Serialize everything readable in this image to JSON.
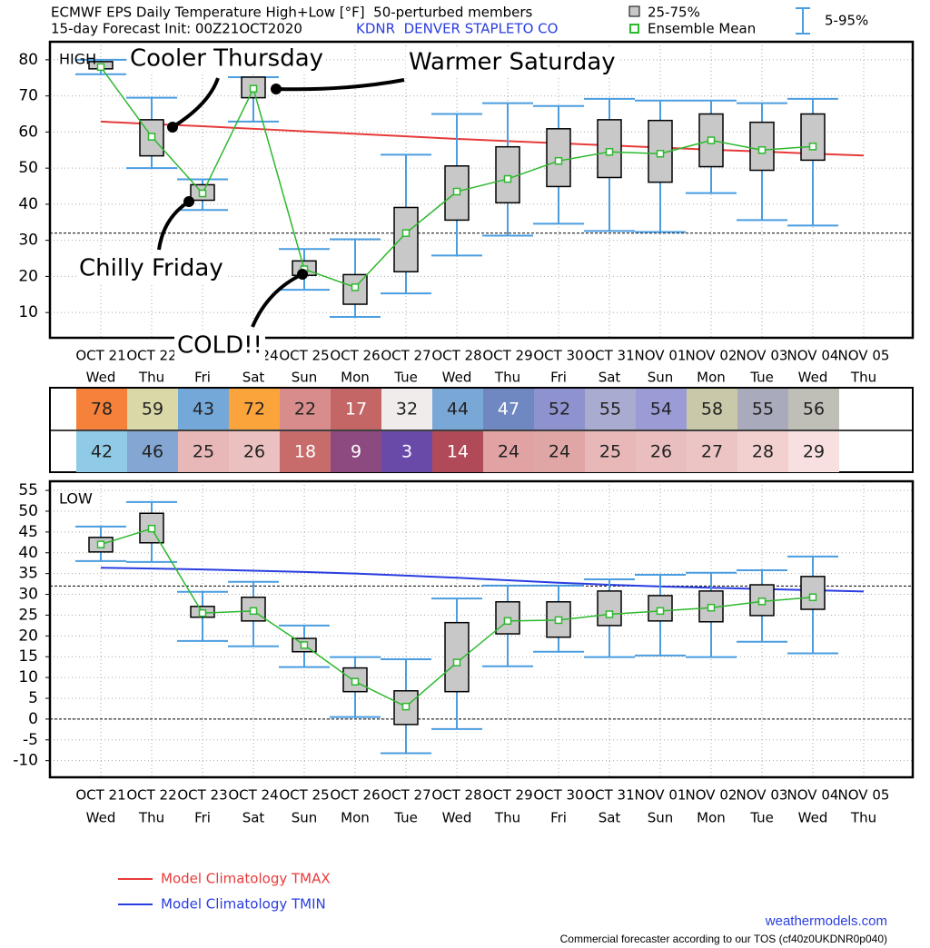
{
  "header": {
    "title": "ECMWF EPS Daily Temperature High+Low [°F]  50-perturbed members",
    "subtitle": "15-day Forecast Init: 00Z21OCT2020",
    "station": "KDNR  DENVER STAPLETO CO"
  },
  "legend": [
    "25-75%",
    "Ensemble Mean",
    "5-95%"
  ],
  "footer": {
    "site": "weathermodels.com",
    "note": "Commercial forecaster according to our TOS (cf40z0UKDNR0p040)"
  },
  "table": {
    "rows": [
      {
        "values": [
          78,
          59,
          43,
          72,
          22,
          17,
          32,
          44,
          47,
          52,
          55,
          54,
          58,
          55,
          56
        ],
        "colors": [
          "#f5813a",
          "#d9d8a6",
          "#74a8d8",
          "#fca43c",
          "#d98c8c",
          "#c46666",
          "#f0eceb",
          "#7aa8d6",
          "#7088c2",
          "#8e93cf",
          "#aaabd0",
          "#9b9bd5",
          "#c9c8a8",
          "#aaaabd",
          "#bfbfb8"
        ]
      },
      {
        "values": [
          42,
          46,
          25,
          26,
          18,
          9,
          3,
          14,
          24,
          24,
          25,
          26,
          27,
          28,
          29
        ],
        "colors": [
          "#8fcae6",
          "#84a6d3",
          "#e8b8b8",
          "#eac0c0",
          "#c86b6b",
          "#8c4a80",
          "#6a4aa8",
          "#b04a58",
          "#e0a2a2",
          "#e0a6a6",
          "#e8b8b8",
          "#eabebe",
          "#ecc4c4",
          "#f2d0d0",
          "#f8e0e0"
        ]
      }
    ]
  },
  "chart_data": [
    {
      "type": "box",
      "panel_label": "HIGH",
      "categories": [
        "OCT 21",
        "OCT 22",
        "OCT 23",
        "OCT 24",
        "OCT 25",
        "OCT 26",
        "OCT 27",
        "OCT 28",
        "OCT 29",
        "OCT 30",
        "OCT 31",
        "NOV 01",
        "NOV 02",
        "NOV 03",
        "NOV 04",
        "NOV 05"
      ],
      "weekdays": [
        "Wed",
        "Thu",
        "Fri",
        "Sat",
        "Sun",
        "Mon",
        "Tue",
        "Wed",
        "Thu",
        "Fri",
        "Sat",
        "Sun",
        "Mon",
        "Tue",
        "Wed",
        "Thu"
      ],
      "ylim": [
        3,
        85
      ],
      "yticks": [
        10,
        20,
        30,
        40,
        50,
        60,
        70,
        80
      ],
      "grid": true,
      "box_color": "#c8c8c8",
      "whisker_color": "#4a9de0",
      "mean_color": "#2db82d",
      "p5": [
        76,
        50,
        38.4,
        62.9,
        16.3,
        8.8,
        15.3,
        25.8,
        31.3,
        34.6,
        32.6,
        32.3,
        43.1,
        35.6,
        34.1,
        null
      ],
      "q1": [
        77.5,
        53.4,
        41.1,
        69.5,
        20.3,
        12.3,
        21.3,
        35.6,
        40.4,
        44.9,
        47.4,
        46.1,
        50.4,
        49.4,
        52.2,
        null
      ],
      "q3": [
        79.5,
        63.4,
        45.4,
        75.2,
        24.3,
        20.5,
        39.1,
        50.6,
        55.9,
        60.9,
        63.4,
        63.2,
        65,
        62.7,
        65,
        null
      ],
      "p95": [
        80,
        69.5,
        46.9,
        75.2,
        27.6,
        30.3,
        53.7,
        65,
        68,
        67.2,
        69.2,
        68.7,
        68.7,
        68,
        69.2,
        null
      ],
      "mean": [
        78,
        58.7,
        43,
        72,
        22,
        17,
        32,
        43.5,
        47,
        52,
        54.5,
        54,
        57.7,
        55,
        56,
        null
      ],
      "reference_lines": [
        32
      ],
      "climatology": {
        "name": "Model Climatology TMAX",
        "color": "#e83a3a",
        "values": [
          62.9,
          62.2,
          61.6,
          60.9,
          60.2,
          59.5,
          58.8,
          58.1,
          57.5,
          56.9,
          56.3,
          55.7,
          55.1,
          54.6,
          54.0,
          53.5
        ]
      },
      "annotations": [
        "Cooler Thursday",
        "Warmer Saturday",
        "Chilly Friday",
        "COLD!!"
      ]
    },
    {
      "type": "box",
      "panel_label": "LOW",
      "categories": [
        "OCT 21",
        "OCT 22",
        "OCT 23",
        "OCT 24",
        "OCT 25",
        "OCT 26",
        "OCT 27",
        "OCT 28",
        "OCT 29",
        "OCT 30",
        "OCT 31",
        "NOV 01",
        "NOV 02",
        "NOV 03",
        "NOV 04",
        "NOV 05"
      ],
      "weekdays": [
        "Wed",
        "Thu",
        "Fri",
        "Sat",
        "Sun",
        "Mon",
        "Tue",
        "Wed",
        "Thu",
        "Fri",
        "Sat",
        "Sun",
        "Mon",
        "Tue",
        "Wed",
        "Thu"
      ],
      "ylim": [
        -14,
        57.2
      ],
      "yticks": [
        55,
        50,
        45,
        40,
        35,
        30,
        25,
        20,
        15,
        10,
        5,
        0,
        -5,
        -10
      ],
      "grid": true,
      "box_color": "#c8c8c8",
      "whisker_color": "#4a9de0",
      "mean_color": "#2db82d",
      "p5": [
        38,
        37.8,
        18.8,
        17.5,
        12.5,
        0.5,
        -8.2,
        -2.4,
        12.7,
        16.2,
        14.9,
        15.3,
        14.9,
        18.6,
        15.8,
        null
      ],
      "q1": [
        40.2,
        42.4,
        24.5,
        23.6,
        16.2,
        6.6,
        -1.3,
        6.6,
        20.5,
        19.7,
        22.5,
        23.6,
        23.4,
        24.9,
        26.4,
        null
      ],
      "q3": [
        43.7,
        49.5,
        27.1,
        29.3,
        19.4,
        12.3,
        6.8,
        23.2,
        28.2,
        28.2,
        30.8,
        29.7,
        30.8,
        32.3,
        34.3,
        null
      ],
      "p95": [
        46.3,
        52.2,
        30.6,
        33,
        22.5,
        14.9,
        14.4,
        29,
        32.1,
        32.1,
        33.6,
        34.7,
        35.2,
        35.8,
        39.1,
        null
      ],
      "mean": [
        42,
        45.8,
        25.5,
        26,
        17.8,
        9,
        3,
        13.6,
        23.6,
        23.8,
        25.2,
        26,
        26.8,
        28.3,
        29.3,
        null
      ],
      "reference_lines": [
        32,
        0
      ],
      "climatology": {
        "name": "Model Climatology TMIN",
        "color": "#2a3de0",
        "values": [
          36.4,
          36.2,
          36.0,
          35.7,
          35.4,
          35.0,
          34.5,
          34.0,
          33.4,
          32.8,
          32.3,
          31.9,
          31.6,
          31.3,
          31.0,
          30.7
        ]
      },
      "annotations": []
    }
  ]
}
